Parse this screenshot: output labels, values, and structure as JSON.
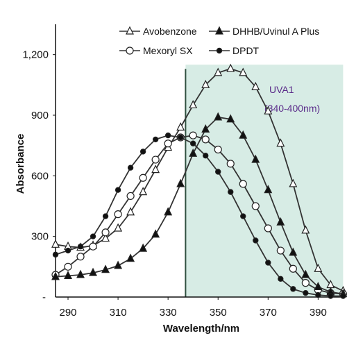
{
  "chart_data": {
    "type": "line",
    "xlabel": "Wavelength/nm",
    "ylabel": "Absorbance",
    "xlim": [
      285,
      401
    ],
    "ylim": [
      0,
      1350
    ],
    "x_ticks": [
      290,
      310,
      330,
      350,
      370,
      390
    ],
    "x_tick_labels": [
      "290",
      "310",
      "330",
      "350",
      "370",
      "390"
    ],
    "y_ticks": [
      300,
      600,
      900,
      1200
    ],
    "y_tick_labels": [
      "300",
      "600",
      "900",
      "1,200"
    ],
    "y_zero_label": "-",
    "grid": false,
    "legend_position": "top",
    "region": {
      "label_line1": "UVA1",
      "label_line2": "(340-400nm)",
      "x_start": 337,
      "x_end": 400,
      "y_top": 1150,
      "fill": "#d7ece5",
      "edge": "#2f4f3f"
    },
    "series": [
      {
        "name": "Avobenzone",
        "marker": "triangle-open",
        "x": [
          285,
          290,
          295,
          300,
          305,
          310,
          315,
          320,
          325,
          330,
          335,
          340,
          345,
          350,
          355,
          360,
          365,
          370,
          375,
          380,
          385,
          390,
          395,
          400
        ],
        "y": [
          260,
          250,
          245,
          255,
          290,
          340,
          420,
          520,
          630,
          740,
          840,
          950,
          1050,
          1110,
          1130,
          1110,
          1040,
          920,
          760,
          560,
          330,
          140,
          60,
          30
        ]
      },
      {
        "name": "Mexoryl SX",
        "marker": "circle-open",
        "x": [
          285,
          290,
          295,
          300,
          305,
          310,
          315,
          320,
          325,
          330,
          335,
          340,
          345,
          350,
          355,
          360,
          365,
          370,
          375,
          380,
          385,
          390,
          395,
          400
        ],
        "y": [
          110,
          150,
          200,
          250,
          320,
          410,
          500,
          590,
          680,
          760,
          790,
          800,
          780,
          730,
          660,
          560,
          450,
          340,
          230,
          140,
          70,
          35,
          20,
          15
        ]
      },
      {
        "name": "DHHB/Uvinul A Plus",
        "marker": "triangle-filled",
        "x": [
          285,
          290,
          295,
          300,
          305,
          310,
          315,
          320,
          325,
          330,
          335,
          340,
          345,
          350,
          355,
          360,
          365,
          370,
          375,
          380,
          385,
          390,
          395,
          400
        ],
        "y": [
          100,
          105,
          110,
          120,
          135,
          155,
          190,
          240,
          310,
          420,
          560,
          710,
          830,
          890,
          880,
          800,
          680,
          530,
          370,
          220,
          110,
          50,
          25,
          15
        ]
      },
      {
        "name": "DPDT",
        "marker": "circle-filled",
        "x": [
          285,
          290,
          295,
          300,
          305,
          310,
          315,
          320,
          325,
          330,
          335,
          340,
          345,
          350,
          355,
          360,
          365,
          370,
          375,
          380,
          385,
          390,
          395,
          400
        ],
        "y": [
          210,
          230,
          250,
          300,
          400,
          530,
          640,
          720,
          780,
          800,
          790,
          760,
          700,
          620,
          520,
          400,
          280,
          170,
          90,
          40,
          20,
          10,
          5,
          5
        ]
      }
    ]
  }
}
